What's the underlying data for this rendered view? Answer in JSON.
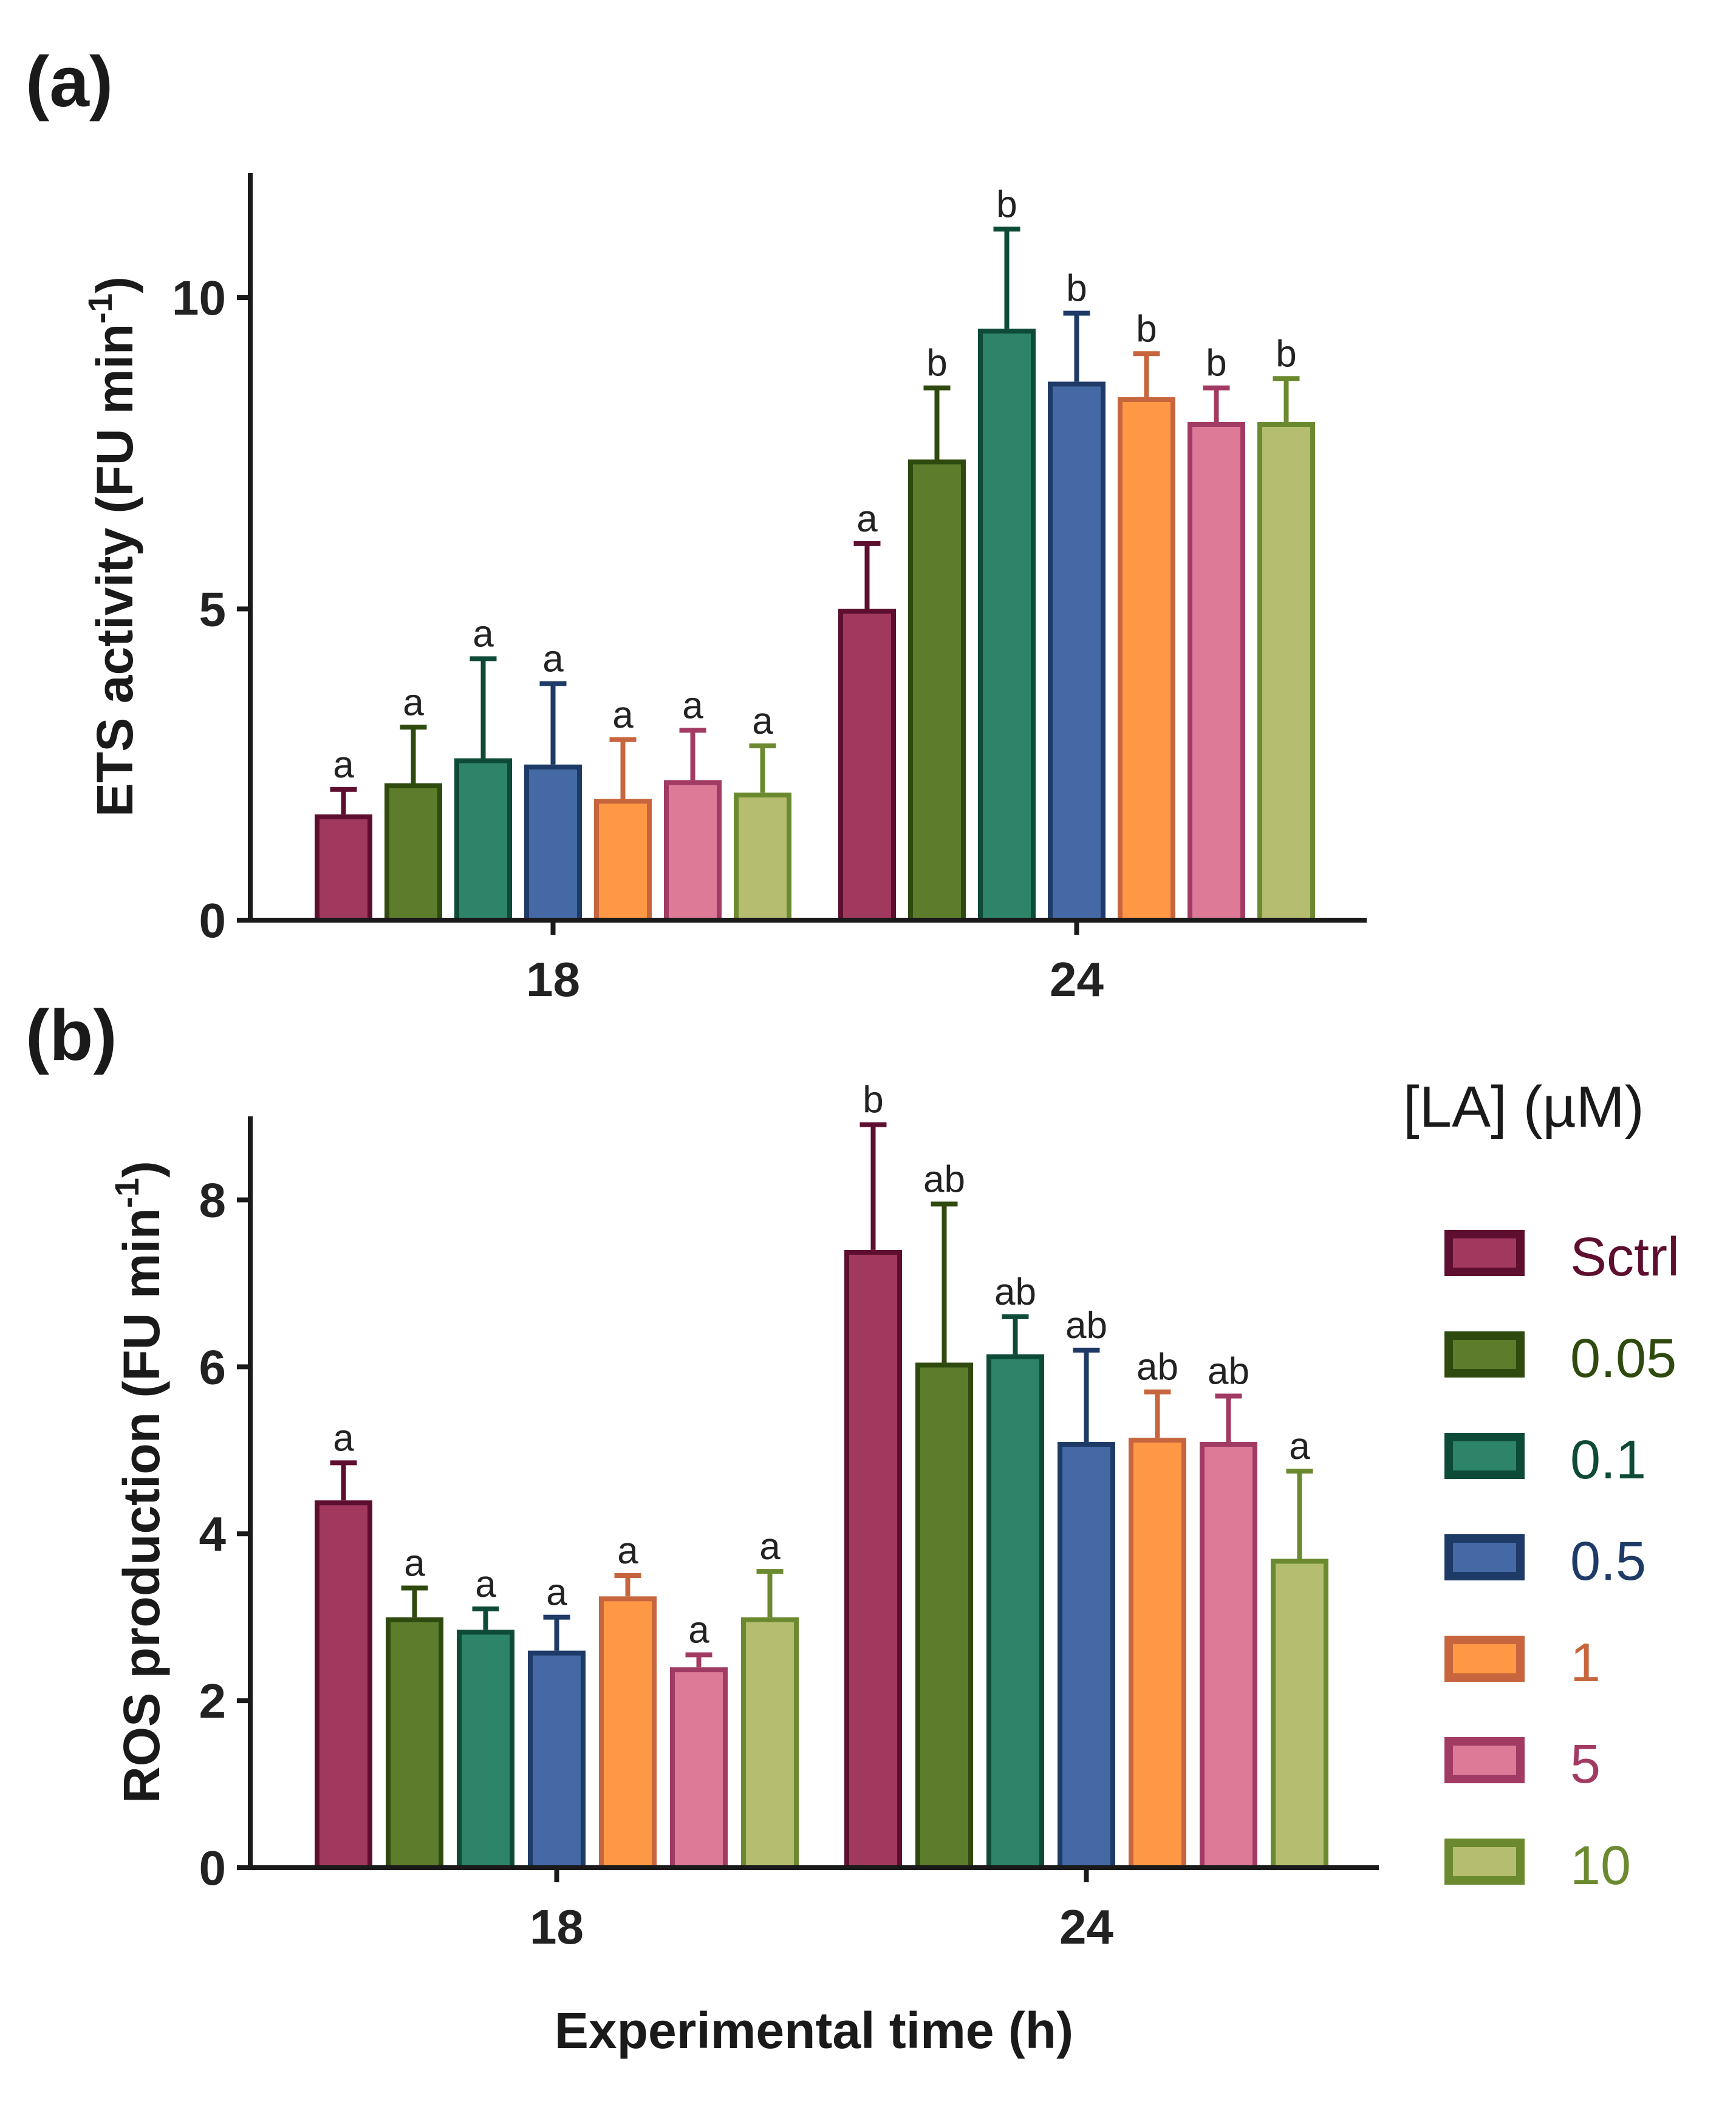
{
  "legend": {
    "title": "[LA] (µM)",
    "entries": [
      {
        "label": "Sctrl",
        "fill": "#A0395D",
        "stroke": "#5E0F30"
      },
      {
        "label": "0.05",
        "fill": "#5E7D2C",
        "stroke": "#2F4A0E"
      },
      {
        "label": "0.1",
        "fill": "#2E8468",
        "stroke": "#0D4A37"
      },
      {
        "label": "0.5",
        "fill": "#4469A5",
        "stroke": "#1E3A66"
      },
      {
        "label": "1",
        "fill": "#FF9845",
        "stroke": "#C7663E"
      },
      {
        "label": "5",
        "fill": "#DC7A98",
        "stroke": "#A23B64"
      },
      {
        "label": "10",
        "fill": "#B5BD70",
        "stroke": "#6B8A2F"
      }
    ]
  },
  "xlabel": "Experimental time (h)",
  "chart_data": [
    {
      "panel": "(a)",
      "type": "bar",
      "ylabel": "ETS activity (FU min",
      "ylabel_sup": "-1",
      "ylabel_close": ")",
      "ylim": [
        0,
        12
      ],
      "yticks": [
        "0",
        "5",
        "10"
      ],
      "categories": [
        "18",
        "24"
      ],
      "series": [
        {
          "name": "Sctrl",
          "values": [
            1.7,
            5.0
          ],
          "errors": [
            0.4,
            1.05
          ],
          "letters": [
            "a",
            "a"
          ]
        },
        {
          "name": "0.05",
          "values": [
            2.2,
            7.4
          ],
          "errors": [
            0.9,
            1.15
          ],
          "letters": [
            "a",
            "b"
          ]
        },
        {
          "name": "0.1",
          "values": [
            2.6,
            9.5
          ],
          "errors": [
            1.6,
            1.6
          ],
          "letters": [
            "a",
            "b"
          ]
        },
        {
          "name": "0.5",
          "values": [
            2.5,
            8.65
          ],
          "errors": [
            1.3,
            1.1
          ],
          "letters": [
            "a",
            "b"
          ]
        },
        {
          "name": "1",
          "values": [
            1.95,
            8.4
          ],
          "errors": [
            0.95,
            0.7
          ],
          "letters": [
            "a",
            "b"
          ]
        },
        {
          "name": "5",
          "values": [
            2.25,
            8.0
          ],
          "errors": [
            0.8,
            0.55
          ],
          "letters": [
            "a",
            "b"
          ]
        },
        {
          "name": "10",
          "values": [
            2.05,
            8.0
          ],
          "errors": [
            0.75,
            0.7
          ],
          "letters": [
            "a",
            "b"
          ]
        }
      ]
    },
    {
      "panel": "(b)",
      "type": "bar",
      "ylabel": "ROS production (FU min",
      "ylabel_sup": "-1",
      "ylabel_close": ")",
      "ylim": [
        0,
        9
      ],
      "yticks": [
        "0",
        "2",
        "4",
        "6",
        "8"
      ],
      "categories": [
        "18",
        "24"
      ],
      "series": [
        {
          "name": "Sctrl",
          "values": [
            4.4,
            7.4
          ],
          "errors": [
            0.45,
            1.5
          ],
          "letters": [
            "a",
            "b"
          ]
        },
        {
          "name": "0.05",
          "values": [
            3.0,
            6.05
          ],
          "errors": [
            0.35,
            1.9
          ],
          "letters": [
            "a",
            "ab"
          ]
        },
        {
          "name": "0.1",
          "values": [
            2.85,
            6.15
          ],
          "errors": [
            0.25,
            0.45
          ],
          "letters": [
            "a",
            "ab"
          ]
        },
        {
          "name": "0.5",
          "values": [
            2.6,
            5.1
          ],
          "errors": [
            0.4,
            1.1
          ],
          "letters": [
            "a",
            "ab"
          ]
        },
        {
          "name": "1",
          "values": [
            3.25,
            5.15
          ],
          "errors": [
            0.25,
            0.55
          ],
          "letters": [
            "a",
            "ab"
          ]
        },
        {
          "name": "5",
          "values": [
            2.4,
            5.1
          ],
          "errors": [
            0.15,
            0.55
          ],
          "letters": [
            "a",
            "ab"
          ]
        },
        {
          "name": "10",
          "values": [
            3.0,
            3.7
          ],
          "errors": [
            0.55,
            1.05
          ],
          "letters": [
            "a",
            "a"
          ]
        }
      ]
    }
  ]
}
